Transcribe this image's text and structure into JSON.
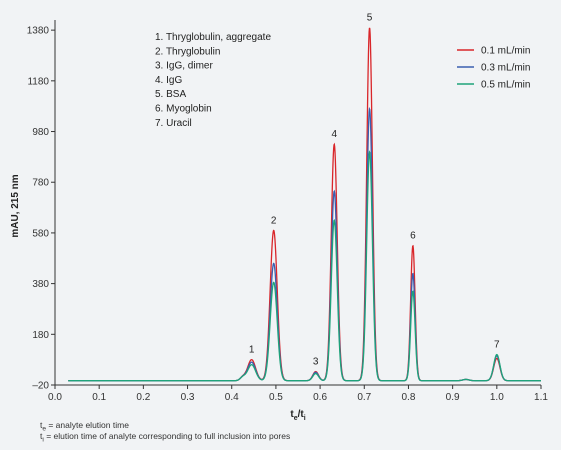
{
  "chart_data": {
    "type": "line",
    "ylabel": "mAU, 215 nm",
    "xlabel": {
      "main": "t",
      "sub1": "e",
      "slash": "/t",
      "sub2": "i"
    },
    "xlim": [
      0.0,
      1.1
    ],
    "ylim": [
      -20,
      1420
    ],
    "x_ticks": [
      "0.0",
      "0.1",
      "0.2",
      "0.3",
      "0.4",
      "0.5",
      "0.6",
      "0.7",
      "0.8",
      "0.9",
      "1.0",
      "1.1"
    ],
    "y_ticks": [
      "–20",
      "180",
      "380",
      "580",
      "780",
      "980",
      "1180",
      "1380"
    ],
    "grid": false,
    "legend_position": "top-right",
    "peak_annotations": [
      {
        "label": "1",
        "x": 0.445,
        "y": 80
      },
      {
        "label": "2",
        "x": 0.495,
        "y": 590
      },
      {
        "label": "3",
        "x": 0.59,
        "y": 33
      },
      {
        "label": "4",
        "x": 0.632,
        "y": 930
      },
      {
        "label": "5",
        "x": 0.712,
        "y": 1390
      },
      {
        "label": "6",
        "x": 0.81,
        "y": 530
      },
      {
        "label": "7",
        "x": 1.0,
        "y": 100
      }
    ],
    "compound_list": [
      "1.   Thryglobulin, aggregate",
      "2.   Thryglobulin",
      "3.   IgG, dimer",
      "4.   IgG",
      "5.   BSA",
      "6.   Myoglobin",
      "7.   Uracil"
    ],
    "series": [
      {
        "name": "0.1 mL/min",
        "color": "#d9262a",
        "x": [
          0.0,
          0.425,
          0.445,
          0.495,
          0.59,
          0.632,
          0.712,
          0.81,
          0.91,
          0.93,
          1.0,
          1.1
        ],
        "y": [
          -3,
          10,
          80,
          590,
          33,
          930,
          1390,
          530,
          -3,
          2,
          85,
          -3
        ]
      },
      {
        "name": "0.3 mL/min",
        "color": "#3a5fb0",
        "x": [
          0.0,
          0.425,
          0.445,
          0.495,
          0.59,
          0.632,
          0.712,
          0.81,
          0.91,
          0.93,
          1.0,
          1.1
        ],
        "y": [
          -3,
          10,
          70,
          460,
          30,
          745,
          1070,
          420,
          -3,
          2,
          95,
          -3
        ]
      },
      {
        "name": "0.5 mL/min",
        "color": "#1fa37a",
        "x": [
          0.0,
          0.425,
          0.445,
          0.495,
          0.59,
          0.632,
          0.712,
          0.81,
          0.91,
          0.93,
          1.0,
          1.1
        ],
        "y": [
          -3,
          10,
          60,
          385,
          25,
          630,
          900,
          350,
          -3,
          2,
          100,
          -3
        ]
      }
    ]
  },
  "footnotes": {
    "line1": {
      "sym": "t",
      "sub": "e",
      "text": " = analyte elution time"
    },
    "line2": {
      "sym": "t",
      "sub": "i",
      "text": " = elution time of analyte corresponding to full inclusion into pores"
    }
  }
}
